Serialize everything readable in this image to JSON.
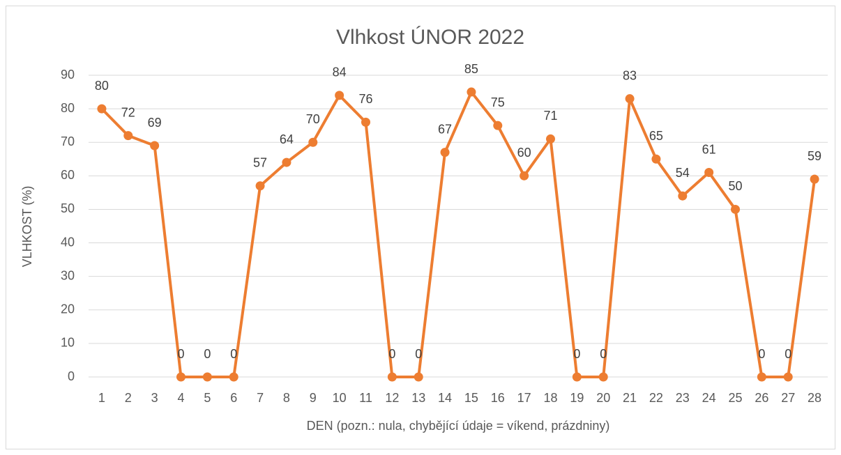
{
  "chart_data": {
    "type": "line",
    "title": "Vlhkost ÚNOR 2022",
    "x_label": "DEN (pozn.: nula, chybějící údaje = víkend, prázdniny)",
    "y_label": "VLHKOST (%)",
    "categories": [
      "1",
      "2",
      "3",
      "4",
      "5",
      "6",
      "7",
      "8",
      "9",
      "10",
      "11",
      "12",
      "13",
      "14",
      "15",
      "16",
      "17",
      "18",
      "19",
      "20",
      "21",
      "22",
      "23",
      "24",
      "25",
      "26",
      "27",
      "28"
    ],
    "series": [
      {
        "name": "Vlhkost",
        "color": "#ed7d31",
        "values": [
          80,
          72,
          69,
          0,
          0,
          0,
          57,
          64,
          70,
          84,
          76,
          0,
          0,
          67,
          85,
          75,
          60,
          71,
          0,
          0,
          83,
          65,
          54,
          61,
          50,
          0,
          0,
          59
        ]
      }
    ],
    "ylim": [
      0,
      90
    ],
    "yticks": [
      0,
      10,
      20,
      30,
      40,
      50,
      60,
      70,
      80,
      90
    ],
    "grid": true
  }
}
